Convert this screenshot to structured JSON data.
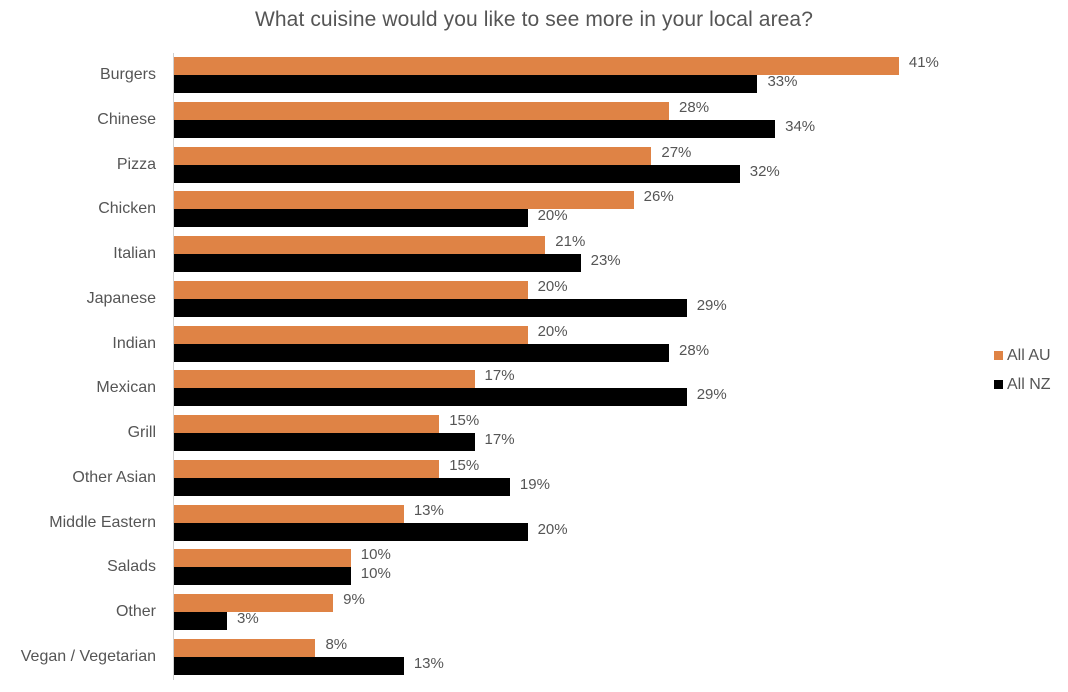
{
  "chart_data": {
    "type": "bar",
    "orientation": "horizontal",
    "title": "What cuisine would you like to see more in your local area?",
    "xlabel": "",
    "ylabel": "",
    "grid": false,
    "legend_position": "right",
    "value_format": "percent",
    "categories": [
      "Burgers",
      "Chinese",
      "Pizza",
      "Chicken",
      "Italian",
      "Japanese",
      "Indian",
      "Mexican",
      "Grill",
      "Other Asian",
      "Middle Eastern",
      "Salads",
      "Other",
      "Vegan / Vegetarian"
    ],
    "series": [
      {
        "name": "All AU",
        "color": "#df8345",
        "values": [
          41,
          28,
          27,
          26,
          21,
          20,
          20,
          17,
          15,
          15,
          13,
          10,
          9,
          8
        ]
      },
      {
        "name": "All NZ",
        "color": "#000000",
        "values": [
          33,
          34,
          32,
          20,
          23,
          29,
          28,
          29,
          17,
          19,
          20,
          10,
          3,
          13
        ]
      }
    ],
    "data_labels": {
      "All AU": [
        "41%",
        "28%",
        "27%",
        "26%",
        "21%",
        "20%",
        "20%",
        "17%",
        "15%",
        "15%",
        "13%",
        "10%",
        "9%",
        "8%"
      ],
      "All NZ": [
        "33%",
        "34%",
        "32%",
        "20%",
        "23%",
        "29%",
        "28%",
        "29%",
        "17%",
        "19%",
        "20%",
        "10%",
        "3%",
        "13%"
      ]
    }
  },
  "legend": {
    "items": [
      {
        "label": "All AU",
        "color": "#df8345"
      },
      {
        "label": "All NZ",
        "color": "#000000"
      }
    ]
  }
}
